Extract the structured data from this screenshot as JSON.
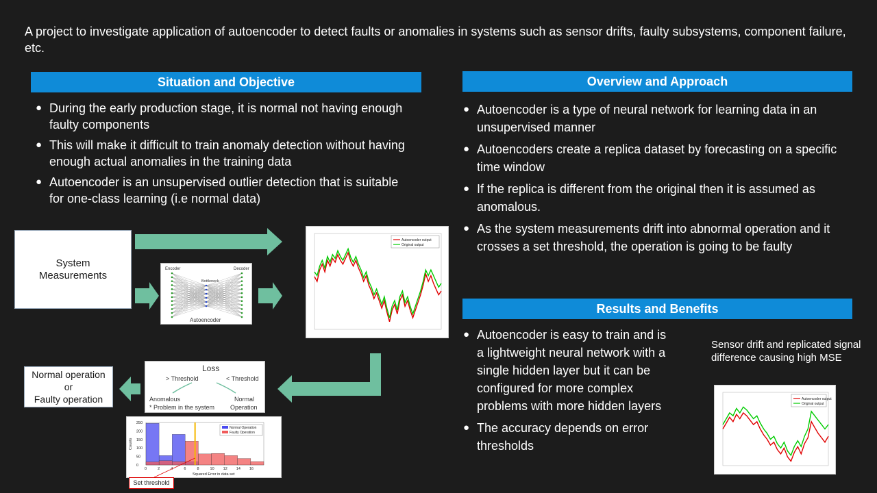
{
  "intro": "A project to investigate application of autoencoder to detect faults or anomalies in systems such as sensor drifts, faulty subsystems, component failure, etc.",
  "situation": {
    "title": "Situation and Objective",
    "bullets": [
      "During the early production stage, it is normal not having enough faulty components",
      "This will make it difficult to train anomaly detection without having enough actual anomalies in the training data",
      "Autoencoder is an unsupervised outlier detection that is suitable for one-class learning (i.e normal data)"
    ]
  },
  "overview": {
    "title": "Overview and Approach",
    "bullets": [
      "Autoencoder is a type of neural network for learning data in an unsupervised manner",
      "Autoencoders create a replica dataset by forecasting on a specific time window",
      "If the replica is different from the original then it is assumed as anomalous.",
      "As the system measurements drift into abnormal operation and it crosses a set threshold, the operation is going to be faulty"
    ]
  },
  "results": {
    "title": "Results and Benefits",
    "bullets": [
      "Autoencoder is easy to train and is a lightweight neural network with a single hidden layer but it can be configured for more complex problems with more hidden layers",
      "The accuracy depends on error thresholds"
    ]
  },
  "diagram": {
    "system_line1": "System",
    "system_line2": "Measurements",
    "encoder": "Encoder",
    "decoder": "Decoder",
    "bottleneck": "Bottleneck",
    "autoencoder": "Autoencoder",
    "loss": "Loss",
    "gt_threshold": "> Threshold",
    "lt_threshold": "< Threshold",
    "anomalous": "Anomalous",
    "problem": "* Problem in the system",
    "normal1": "Normal",
    "normal2": "Operation",
    "outcome1": "Normal operation",
    "outcome2": "or",
    "outcome3": "Faulty operation",
    "set_threshold": "Set threshold"
  },
  "drift_caption": "Sensor drift and replicated signal difference causing high MSE",
  "colors": {
    "header": "#0f8bd8",
    "arrow": "#6fbf9f",
    "autoencoder_line": "#e00000",
    "original_line": "#00cc00"
  },
  "chart_data": [
    {
      "type": "line",
      "legend": [
        "Autoencoder output",
        "Original output"
      ],
      "legend_position": "top-right",
      "series": [
        {
          "name": "Autoencoder output",
          "values": [
            0.55,
            0.5,
            0.62,
            0.68,
            0.6,
            0.72,
            0.66,
            0.74,
            0.7,
            0.78,
            0.72,
            0.68,
            0.74,
            0.8,
            0.71,
            0.66,
            0.72,
            0.64,
            0.58,
            0.5,
            0.56,
            0.46,
            0.4,
            0.32,
            0.38,
            0.3,
            0.22,
            0.3,
            0.18,
            0.08,
            0.2,
            0.26,
            0.16,
            0.3,
            0.36,
            0.24,
            0.3,
            0.2,
            0.12,
            0.2,
            0.28,
            0.36,
            0.46,
            0.58,
            0.5,
            0.56,
            0.48,
            0.42,
            0.36,
            0.4
          ]
        },
        {
          "name": "Original output",
          "values": [
            0.6,
            0.56,
            0.66,
            0.72,
            0.64,
            0.76,
            0.7,
            0.78,
            0.74,
            0.82,
            0.76,
            0.72,
            0.78,
            0.84,
            0.75,
            0.7,
            0.76,
            0.68,
            0.62,
            0.54,
            0.6,
            0.5,
            0.44,
            0.36,
            0.42,
            0.34,
            0.26,
            0.34,
            0.22,
            0.12,
            0.24,
            0.3,
            0.2,
            0.34,
            0.4,
            0.28,
            0.34,
            0.24,
            0.16,
            0.24,
            0.32,
            0.4,
            0.5,
            0.62,
            0.56,
            0.62,
            0.56,
            0.5,
            0.44,
            0.48
          ]
        }
      ]
    },
    {
      "type": "bar",
      "legend": [
        "Normal Operation",
        "Faulty Operation"
      ],
      "legend_position": "top-right",
      "xlabel": "Squared Error in data set",
      "ylabel": "Counts",
      "xticks": [
        "0",
        "2",
        "4",
        "6",
        "8",
        "10",
        "12",
        "14",
        "16"
      ],
      "yticks": [
        "0",
        "50",
        "100",
        "150",
        "200",
        "250"
      ],
      "ylim": [
        0,
        250
      ],
      "threshold": 7.5,
      "series": [
        {
          "name": "Normal Operation",
          "bins": [
            [
              0,
              2,
              245
            ],
            [
              2,
              4,
              55
            ],
            [
              4,
              6,
              180
            ],
            [
              6,
              8,
              20
            ]
          ]
        },
        {
          "name": "Faulty Operation",
          "bins": [
            [
              0,
              2,
              18
            ],
            [
              2,
              4,
              25
            ],
            [
              4,
              6,
              20
            ],
            [
              6,
              8,
              140
            ],
            [
              8,
              10,
              65
            ],
            [
              10,
              12,
              68
            ],
            [
              12,
              14,
              55
            ],
            [
              14,
              16,
              38
            ],
            [
              16,
              18,
              20
            ]
          ]
        }
      ]
    },
    {
      "type": "line",
      "legend": [
        "Autoencoder output",
        "Original output"
      ],
      "legend_position": "top-right",
      "series": [
        {
          "name": "Autoencoder output",
          "values": [
            0.5,
            0.58,
            0.66,
            0.6,
            0.7,
            0.64,
            0.72,
            0.68,
            0.62,
            0.56,
            0.6,
            0.5,
            0.42,
            0.36,
            0.28,
            0.32,
            0.22,
            0.16,
            0.24,
            0.12,
            0.06,
            0.18,
            0.26,
            0.16,
            0.3,
            0.38,
            0.6,
            0.52,
            0.44,
            0.38,
            0.32,
            0.4
          ]
        },
        {
          "name": "Original output",
          "values": [
            0.56,
            0.64,
            0.72,
            0.68,
            0.78,
            0.72,
            0.8,
            0.76,
            0.7,
            0.64,
            0.68,
            0.58,
            0.5,
            0.44,
            0.36,
            0.4,
            0.3,
            0.24,
            0.32,
            0.2,
            0.14,
            0.26,
            0.34,
            0.26,
            0.4,
            0.5,
            0.74,
            0.68,
            0.62,
            0.56,
            0.5,
            0.56
          ]
        }
      ]
    }
  ]
}
